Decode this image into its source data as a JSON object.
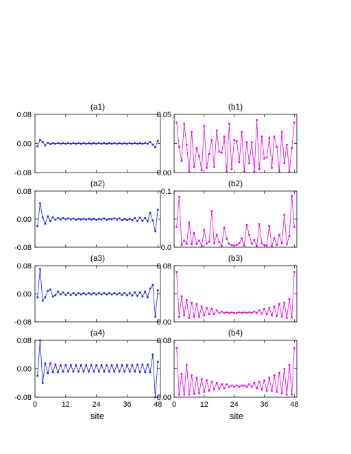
{
  "colors": {
    "a": "#1a1ae6",
    "b": "#e600e6"
  },
  "xlabel": "site",
  "xticks": [
    "0",
    "12",
    "24",
    "36",
    "48"
  ],
  "chart_data": [
    {
      "type": "line",
      "title": "(a1)",
      "xlim": [
        0,
        49
      ],
      "ylim": [
        -0.08,
        0.08
      ],
      "yticks": [
        "0.08",
        "0.00",
        "-0.08"
      ],
      "x": [
        1,
        2,
        3,
        4,
        5,
        6,
        7,
        8,
        9,
        10,
        11,
        12,
        13,
        14,
        15,
        16,
        17,
        18,
        19,
        20,
        21,
        22,
        23,
        24,
        25,
        26,
        27,
        28,
        29,
        30,
        31,
        32,
        33,
        34,
        35,
        36,
        37,
        38,
        39,
        40,
        41,
        42,
        43,
        44,
        45,
        46,
        47,
        48
      ],
      "values": [
        -0.008,
        0.01,
        0.004,
        -0.005,
        0.002,
        -0.002,
        0.001,
        -0.001,
        0.001,
        -0.001,
        0.001,
        -0.001,
        0.001,
        -0.001,
        0.001,
        -0.001,
        0.001,
        -0.001,
        0.001,
        -0.001,
        0.001,
        -0.001,
        0.001,
        -0.001,
        0.001,
        -0.001,
        0.001,
        -0.001,
        0.001,
        -0.001,
        0.001,
        -0.001,
        0.001,
        -0.001,
        0.001,
        -0.001,
        0.001,
        -0.001,
        0.001,
        -0.001,
        0.001,
        -0.001,
        0.001,
        -0.001,
        0.004,
        -0.003,
        -0.01,
        0.007
      ]
    },
    {
      "type": "line",
      "title": "(b1)",
      "xlim": [
        0,
        49
      ],
      "ylim": [
        0,
        0.05
      ],
      "yticks": [
        "0.05",
        "",
        "0.00"
      ],
      "x": [
        1,
        2,
        3,
        4,
        5,
        6,
        7,
        8,
        9,
        10,
        11,
        12,
        13,
        14,
        15,
        16,
        17,
        18,
        19,
        20,
        21,
        22,
        23,
        24,
        25,
        26,
        27,
        28,
        29,
        30,
        31,
        32,
        33,
        34,
        35,
        36,
        37,
        38,
        39,
        40,
        41,
        42,
        43,
        44,
        45,
        46,
        47,
        48
      ],
      "values": [
        0.043,
        0.022,
        0.01,
        0.042,
        0.024,
        0.001,
        0.035,
        0.005,
        0.021,
        0.014,
        0.002,
        0.04,
        0.004,
        0.016,
        0.028,
        0.005,
        0.036,
        0.018,
        0.017,
        0.031,
        0.001,
        0.042,
        0.003,
        0.028,
        0.027,
        0.009,
        0.035,
        0.001,
        0.026,
        0.008,
        0.026,
        0.001,
        0.045,
        0.003,
        0.031,
        0.012,
        0.013,
        0.03,
        0.004,
        0.031,
        0.022,
        0.001,
        0.035,
        0.008,
        0.024,
        0.001,
        0.021,
        0.043
      ]
    },
    {
      "type": "line",
      "title": "(a2)",
      "xlim": [
        0,
        49
      ],
      "ylim": [
        -0.08,
        0.08
      ],
      "yticks": [
        "0.08",
        "0.00",
        "-0.08"
      ],
      "x": [
        1,
        2,
        3,
        4,
        5,
        6,
        7,
        8,
        9,
        10,
        11,
        12,
        13,
        14,
        15,
        16,
        17,
        18,
        19,
        20,
        21,
        22,
        23,
        24,
        25,
        26,
        27,
        28,
        29,
        30,
        31,
        32,
        33,
        34,
        35,
        36,
        37,
        38,
        39,
        40,
        41,
        42,
        43,
        44,
        45,
        46,
        47,
        48
      ],
      "values": [
        -0.02,
        0.045,
        0.005,
        -0.013,
        0.008,
        -0.005,
        0.005,
        -0.002,
        0.003,
        -0.001,
        0.003,
        0,
        0.002,
        -0.001,
        0.002,
        -0.002,
        0.001,
        -0.001,
        0.001,
        -0.001,
        0.001,
        -0.001,
        0.001,
        -0.002,
        0.001,
        -0.001,
        0.002,
        -0.002,
        0.001,
        0,
        0.002,
        -0.001,
        0.002,
        -0.003,
        0.001,
        -0.003,
        0.001,
        -0.003,
        0.003,
        -0.005,
        0.004,
        -0.005,
        0.003,
        -0.006,
        0.018,
        -0.004,
        -0.035,
        0.027
      ]
    },
    {
      "type": "line",
      "title": "(b2)",
      "xlim": [
        0,
        49
      ],
      "ylim": [
        0,
        0.1
      ],
      "yticks": [
        "0.1",
        "",
        "0.0"
      ],
      "x": [
        1,
        2,
        3,
        4,
        5,
        6,
        7,
        8,
        9,
        10,
        11,
        12,
        13,
        14,
        15,
        16,
        17,
        18,
        19,
        20,
        21,
        22,
        23,
        24,
        25,
        26,
        27,
        28,
        29,
        30,
        31,
        32,
        33,
        34,
        35,
        36,
        37,
        38,
        39,
        40,
        41,
        42,
        43,
        44,
        45,
        46,
        47,
        48
      ],
      "values": [
        0.036,
        0.09,
        0.004,
        0.012,
        0.006,
        0.044,
        0.005,
        0.025,
        0.006,
        0.012,
        0.002,
        0.031,
        0.006,
        0.01,
        0.064,
        0.007,
        0.022,
        0.009,
        0.002,
        0.035,
        0.015,
        0.006,
        0.004,
        0.003,
        0.004,
        0.007,
        0.016,
        0.003,
        0.04,
        0.022,
        0.006,
        0.013,
        0.002,
        0.041,
        0.007,
        0.004,
        0.003,
        0.038,
        0.002,
        0.016,
        0.004,
        0.022,
        0.007,
        0.058,
        0.005,
        0.02,
        0.091,
        0.036
      ]
    },
    {
      "type": "line",
      "title": "(a3)",
      "xlim": [
        0,
        49
      ],
      "ylim": [
        -0.08,
        0.08
      ],
      "yticks": [
        "0.08",
        "0.00",
        "-0.08"
      ],
      "x": [
        1,
        2,
        3,
        4,
        5,
        6,
        7,
        8,
        9,
        10,
        11,
        12,
        13,
        14,
        15,
        16,
        17,
        18,
        19,
        20,
        21,
        22,
        23,
        24,
        25,
        26,
        27,
        28,
        29,
        30,
        31,
        32,
        33,
        34,
        35,
        36,
        37,
        38,
        39,
        40,
        41,
        42,
        43,
        44,
        45,
        46,
        47,
        48
      ],
      "values": [
        -0.01,
        0.07,
        -0.02,
        -0.01,
        0.008,
        0.012,
        -0.008,
        -0.004,
        0.006,
        -0.002,
        0.004,
        -0.003,
        0.003,
        -0.003,
        0.002,
        -0.003,
        0.002,
        -0.002,
        0.002,
        -0.002,
        0.002,
        -0.002,
        0.002,
        -0.002,
        0.002,
        -0.002,
        0.002,
        -0.002,
        0.002,
        -0.002,
        0.002,
        -0.002,
        0.002,
        -0.003,
        0.002,
        -0.004,
        0.002,
        -0.005,
        0.004,
        -0.006,
        0.004,
        -0.008,
        0.006,
        -0.01,
        0.015,
        0.025,
        -0.065,
        0.01
      ]
    },
    {
      "type": "line",
      "title": "(b3)",
      "xlim": [
        0,
        49
      ],
      "ylim": [
        0,
        0.088
      ],
      "yticks": [
        "0.08",
        "",
        "0.00"
      ],
      "x": [
        1,
        2,
        3,
        4,
        5,
        6,
        7,
        8,
        9,
        10,
        11,
        12,
        13,
        14,
        15,
        16,
        17,
        18,
        19,
        20,
        21,
        22,
        23,
        24,
        25,
        26,
        27,
        28,
        29,
        30,
        31,
        32,
        33,
        34,
        35,
        36,
        37,
        38,
        39,
        40,
        41,
        42,
        43,
        44,
        45,
        46,
        47,
        48
      ],
      "values": [
        0.078,
        0.008,
        0.04,
        0.01,
        0.034,
        0.006,
        0.03,
        0.008,
        0.028,
        0.008,
        0.024,
        0.01,
        0.022,
        0.012,
        0.02,
        0.012,
        0.018,
        0.014,
        0.016,
        0.014,
        0.015,
        0.014,
        0.015,
        0.014,
        0.014,
        0.015,
        0.014,
        0.015,
        0.014,
        0.015,
        0.014,
        0.016,
        0.014,
        0.018,
        0.013,
        0.02,
        0.012,
        0.022,
        0.01,
        0.024,
        0.009,
        0.028,
        0.008,
        0.03,
        0.006,
        0.036,
        0.007,
        0.078
      ]
    },
    {
      "type": "line",
      "title": "(a4)",
      "xlim": [
        0,
        49
      ],
      "ylim": [
        -0.08,
        0.08
      ],
      "yticks": [
        "0.08",
        "0.00",
        "-0.08"
      ],
      "x": [
        1,
        2,
        3,
        4,
        5,
        6,
        7,
        8,
        9,
        10,
        11,
        12,
        13,
        14,
        15,
        16,
        17,
        18,
        19,
        20,
        21,
        22,
        23,
        24,
        25,
        26,
        27,
        28,
        29,
        30,
        31,
        32,
        33,
        34,
        35,
        36,
        37,
        38,
        39,
        40,
        41,
        42,
        43,
        44,
        45,
        46,
        47,
        48
      ],
      "values": [
        -0.02,
        0.08,
        -0.04,
        0.015,
        -0.012,
        0.015,
        -0.01,
        0.012,
        -0.01,
        0.01,
        -0.008,
        0.01,
        -0.008,
        0.01,
        -0.008,
        0.01,
        -0.008,
        0.01,
        -0.008,
        0.01,
        -0.008,
        0.01,
        -0.008,
        0.01,
        -0.008,
        0.01,
        -0.008,
        0.01,
        -0.008,
        0.01,
        -0.008,
        0.01,
        -0.008,
        0.01,
        -0.008,
        0.01,
        -0.008,
        0.01,
        -0.008,
        0.012,
        -0.01,
        0.012,
        -0.01,
        0.012,
        -0.01,
        0.04,
        -0.08,
        0.02
      ]
    },
    {
      "type": "line",
      "title": "(b4)",
      "xlim": [
        0,
        49
      ],
      "ylim": [
        0,
        0.088
      ],
      "yticks": [
        "0.08",
        "",
        "0.00"
      ],
      "x": [
        1,
        2,
        3,
        4,
        5,
        6,
        7,
        8,
        9,
        10,
        11,
        12,
        13,
        14,
        15,
        16,
        17,
        18,
        19,
        20,
        21,
        22,
        23,
        24,
        25,
        26,
        27,
        28,
        29,
        30,
        31,
        32,
        33,
        34,
        35,
        36,
        37,
        38,
        39,
        40,
        41,
        42,
        43,
        44,
        45,
        46,
        47,
        48
      ],
      "values": [
        0.076,
        0.004,
        0.036,
        0.004,
        0.05,
        0.004,
        0.034,
        0.005,
        0.03,
        0.006,
        0.028,
        0.008,
        0.026,
        0.01,
        0.024,
        0.012,
        0.022,
        0.013,
        0.02,
        0.014,
        0.02,
        0.016,
        0.018,
        0.016,
        0.018,
        0.016,
        0.018,
        0.018,
        0.016,
        0.02,
        0.016,
        0.022,
        0.014,
        0.024,
        0.012,
        0.026,
        0.01,
        0.03,
        0.01,
        0.034,
        0.008,
        0.038,
        0.006,
        0.044,
        0.004,
        0.05,
        0.004,
        0.076
      ]
    }
  ]
}
